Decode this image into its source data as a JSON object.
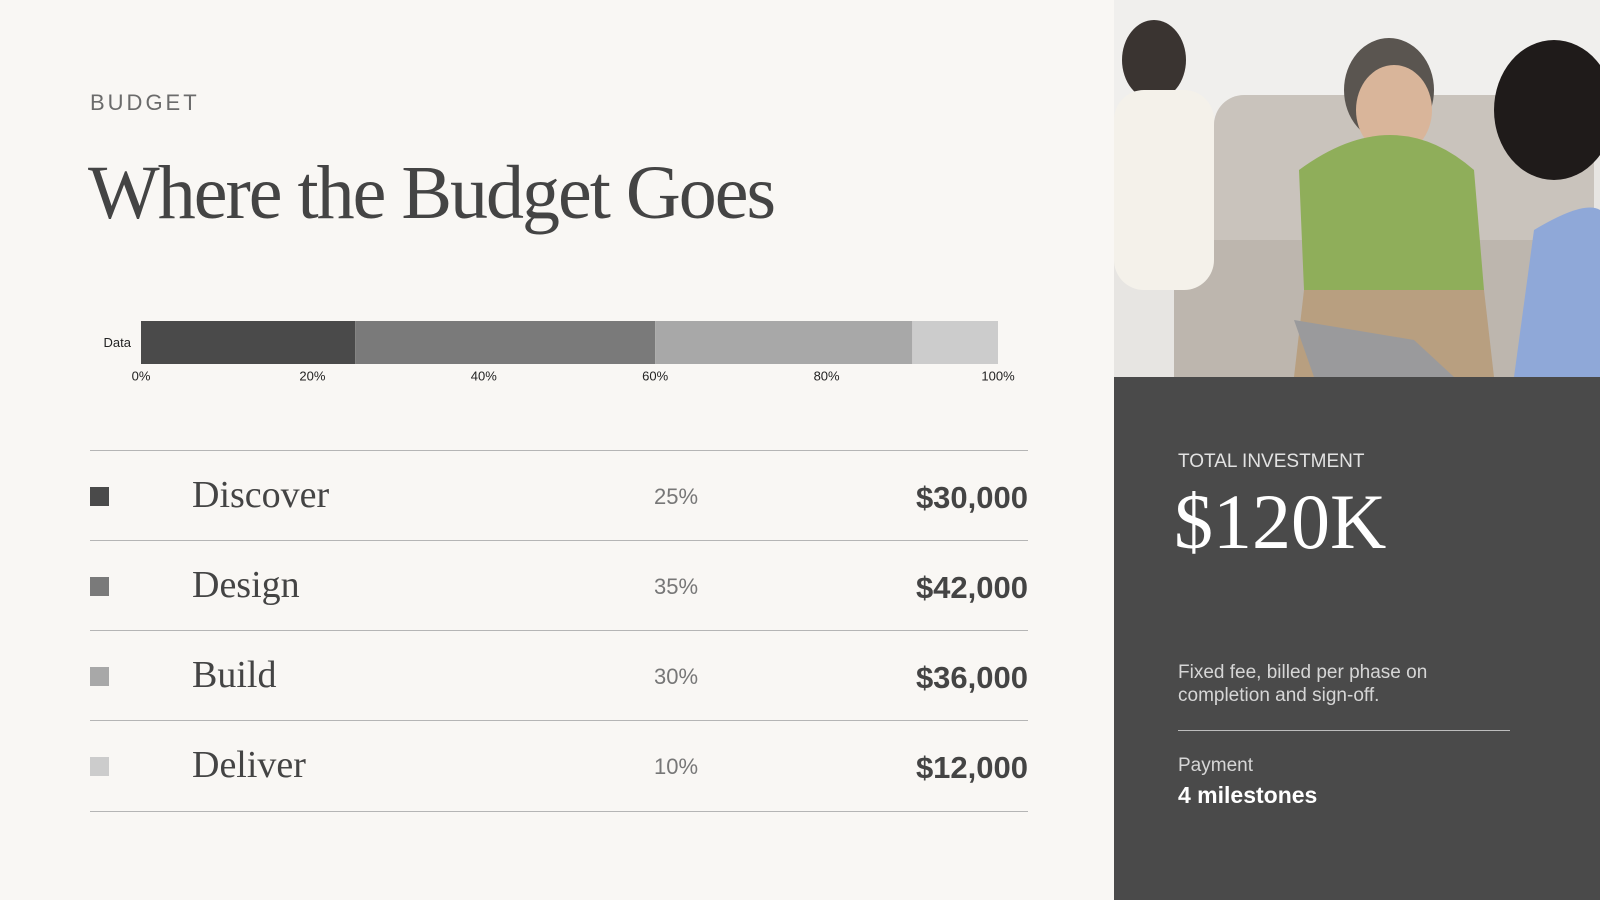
{
  "eyebrow": "BUDGET",
  "title": "Where the Budget Goes",
  "chart_data": {
    "type": "bar",
    "orientation": "horizontal",
    "stacked": true,
    "categories": [
      "Data"
    ],
    "series": [
      {
        "name": "Discover",
        "color": "#4a4a4a",
        "values": [
          25
        ],
        "value_labels": [
          "25%"
        ]
      },
      {
        "name": "Design",
        "color": "#7a7a7a",
        "values": [
          35
        ],
        "value_labels": [
          "35%"
        ]
      },
      {
        "name": "Build",
        "color": "#a8a8a8",
        "values": [
          30
        ],
        "value_labels": [
          "30%"
        ]
      },
      {
        "name": "Deliver",
        "color": "#cccccc",
        "values": [
          10
        ],
        "value_labels": [
          "10%"
        ]
      }
    ],
    "xlim": [
      0,
      100
    ],
    "xticks": [
      {
        "value": 0,
        "label": "0%"
      },
      {
        "value": 20,
        "label": "20%"
      },
      {
        "value": 40,
        "label": "40%"
      },
      {
        "value": 60,
        "label": "60%"
      },
      {
        "value": 80,
        "label": "80%"
      },
      {
        "value": 100,
        "label": "100%"
      }
    ],
    "grid": false
  },
  "amounts": [
    "$30,000",
    "$42,000",
    "$36,000",
    "$12,000"
  ],
  "summary": {
    "label": "TOTAL INVESTMENT",
    "total": "$120K",
    "note": "Fixed fee, billed per phase on completion and sign-off.",
    "payment_label": "Payment",
    "payment": "4 milestones"
  }
}
